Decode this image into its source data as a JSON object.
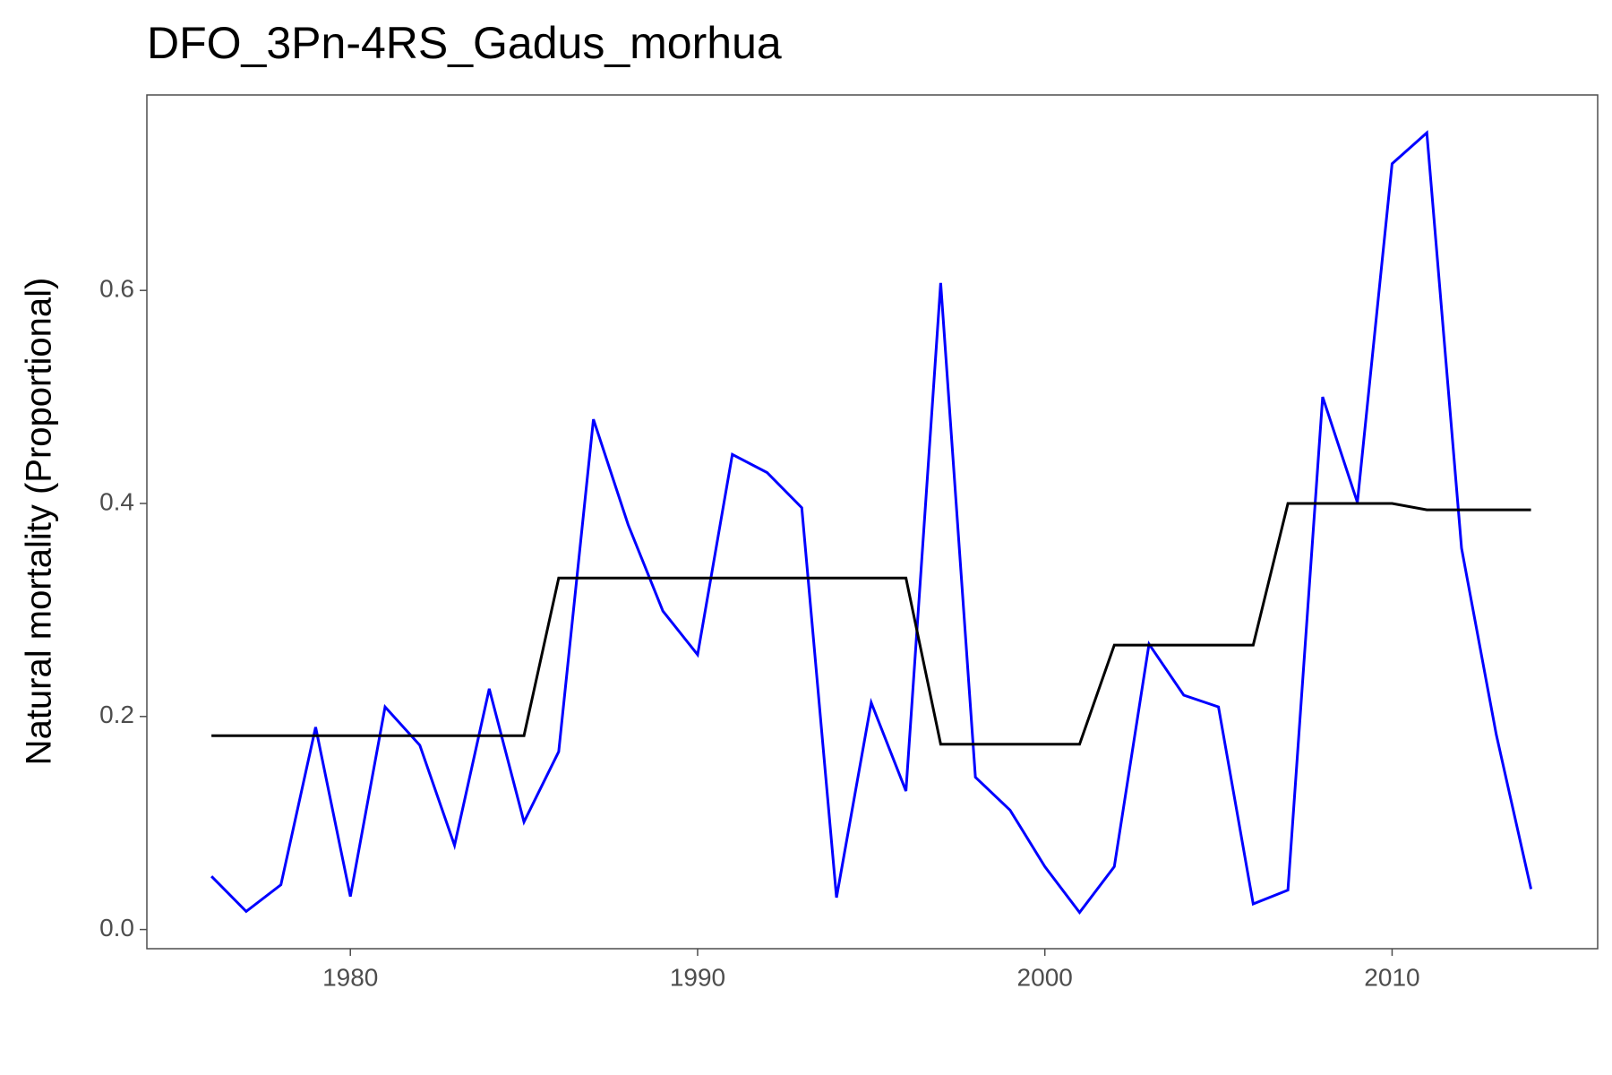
{
  "chart_data": {
    "type": "line",
    "title": "DFO_3Pn-4RS_Gadus_morhua",
    "y_label": "Natural mortality (Proportional)",
    "x": [
      1976,
      1977,
      1978,
      1979,
      1980,
      1981,
      1982,
      1983,
      1984,
      1985,
      1986,
      1987,
      1988,
      1989,
      1990,
      1991,
      1992,
      1993,
      1994,
      1995,
      1996,
      1997,
      1998,
      1999,
      2000,
      2001,
      2002,
      2003,
      2004,
      2005,
      2006,
      2007,
      2008,
      2009,
      2010,
      2011,
      2012,
      2013,
      2014
    ],
    "series": [
      {
        "color": "#0000ff",
        "values": [
          0.05,
          0.017,
          0.042,
          0.19,
          0.031,
          0.209,
          0.173,
          0.079,
          0.226,
          0.101,
          0.167,
          0.479,
          0.38,
          0.299,
          0.258,
          0.446,
          0.429,
          0.396,
          0.03,
          0.213,
          0.13,
          0.607,
          0.143,
          0.112,
          0.059,
          0.016,
          0.059,
          0.268,
          0.22,
          0.209,
          0.024,
          0.037,
          0.5,
          0.401,
          0.719,
          0.748,
          0.358,
          0.183,
          0.038
        ]
      },
      {
        "color": "#000000",
        "values": [
          0.182,
          0.182,
          0.182,
          0.182,
          0.182,
          0.182,
          0.182,
          0.182,
          0.182,
          0.182,
          0.33,
          0.33,
          0.33,
          0.33,
          0.33,
          0.33,
          0.33,
          0.33,
          0.33,
          0.33,
          0.33,
          0.174,
          0.174,
          0.174,
          0.174,
          0.174,
          0.267,
          0.267,
          0.267,
          0.267,
          0.267,
          0.4,
          0.4,
          0.4,
          0.4,
          0.394,
          0.394,
          0.394,
          0.394
        ]
      }
    ],
    "xlim": [
      1974.14,
      2015.92
    ],
    "xticks": [
      1980,
      1990,
      2000,
      2010
    ],
    "ylim": [
      -0.018,
      0.7835
    ],
    "yticks": [
      {
        "value": 0,
        "label": "0.0"
      },
      {
        "value": 0.2,
        "label": "0.2"
      },
      {
        "value": 0.4,
        "label": "0.4"
      },
      {
        "value": 0.6,
        "label": "0.6"
      }
    ]
  }
}
